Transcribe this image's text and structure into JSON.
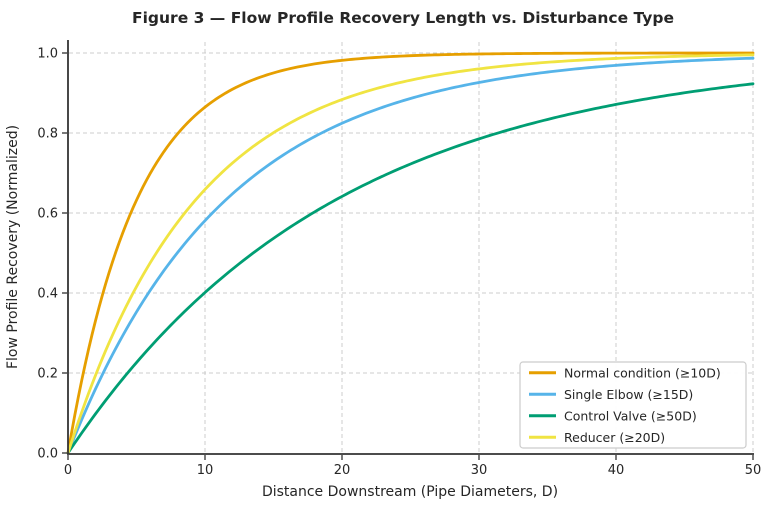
{
  "figure": {
    "background": "#ffffff",
    "text_color": "#262626",
    "spine_color": "#333333"
  },
  "chart_data": {
    "type": "line",
    "title": "Figure 3 — Flow Profile Recovery Length vs. Disturbance Type",
    "xlabel": "Distance Downstream (Pipe Diameters, D)",
    "ylabel": "Flow Profile Recovery (Normalized)",
    "xlim": [
      0,
      50
    ],
    "ylim": [
      0,
      1.03
    ],
    "x_ticks": [
      0,
      10,
      20,
      30,
      40,
      50
    ],
    "y_ticks": [
      0.0,
      0.2,
      0.4,
      0.6,
      0.8,
      1.0
    ],
    "grid": {
      "visible": true,
      "style": "dashed",
      "color": "#cccccc"
    },
    "legend": {
      "position": "lower right",
      "border_color": "#cccccc",
      "background": "rgba(255,255,255,0.95)"
    },
    "model": "y = 1 - exp(-x / tau)",
    "sample_x": [
      0,
      5,
      10,
      15,
      20,
      25,
      30,
      35,
      40,
      45,
      50
    ],
    "series": [
      {
        "name": "Normal condition (≥10D)",
        "color": "#E69F00",
        "tau": 5,
        "values": [
          0,
          0.632,
          0.865,
          0.95,
          0.982,
          0.993,
          0.998,
          0.999,
          1.0,
          1.0,
          1.0
        ]
      },
      {
        "name": "Single Elbow (≥15D)",
        "color": "#56B4E9",
        "tau": 11.5,
        "values": [
          0,
          0.353,
          0.581,
          0.729,
          0.824,
          0.886,
          0.926,
          0.952,
          0.969,
          0.98,
          0.987
        ]
      },
      {
        "name": "Control Valve (≥50D)",
        "color": "#009E73",
        "tau": 19.5,
        "values": [
          0,
          0.226,
          0.401,
          0.537,
          0.641,
          0.722,
          0.785,
          0.834,
          0.871,
          0.9,
          0.923
        ]
      },
      {
        "name": "Reducer (≥20D)",
        "color": "#F0E442",
        "tau": 9.3,
        "values": [
          0,
          0.416,
          0.659,
          0.801,
          0.884,
          0.932,
          0.96,
          0.977,
          0.986,
          0.992,
          0.995
        ]
      }
    ]
  }
}
